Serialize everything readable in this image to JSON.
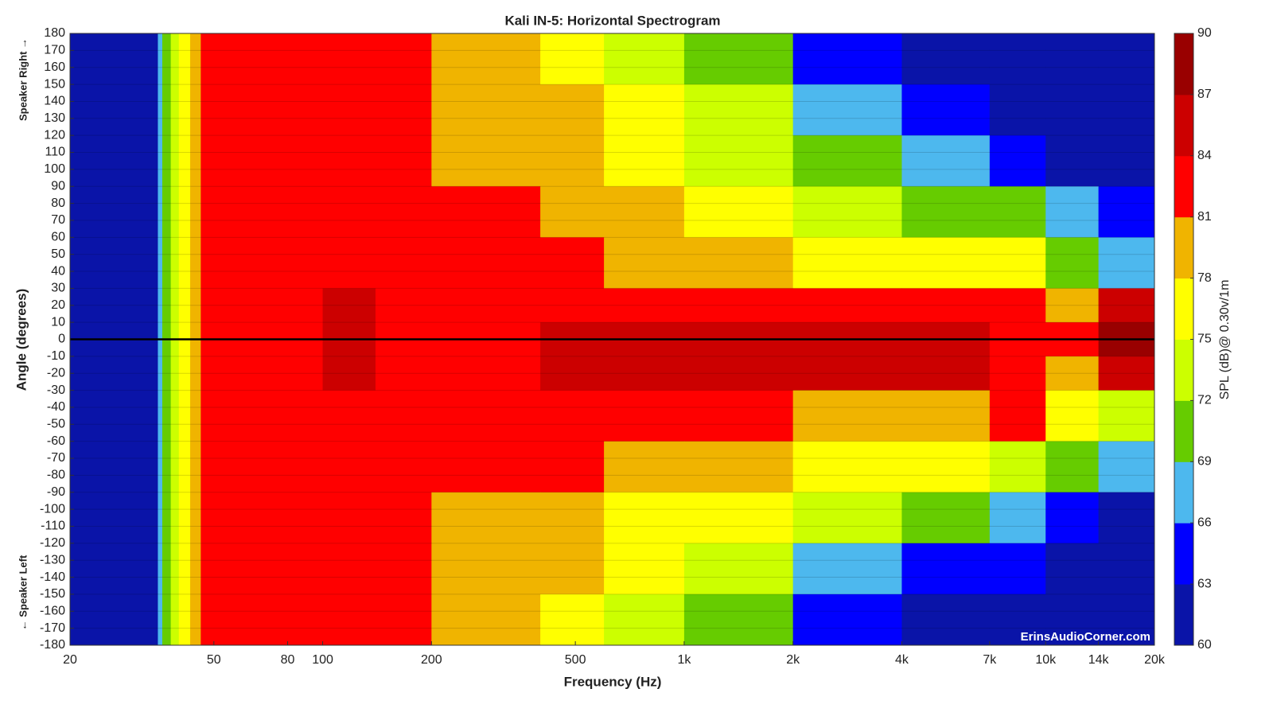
{
  "chart_data": {
    "type": "contour",
    "title": "Kali IN-5: Horizontal Spectrogram",
    "xlabel": "Frequency (Hz)",
    "ylabel": "Angle (degrees)",
    "colorbar_label": "SPL (dB)@ 0.30v/1m",
    "side_label_top": "Speaker Right →",
    "side_label_bottom": "← Speaker Left",
    "watermark": "ErinsAudioCorner.com",
    "xscale": "log",
    "grid": true,
    "zero_line": true,
    "xlim": [
      20,
      20000
    ],
    "xticks": [
      20,
      50,
      80,
      100,
      200,
      500,
      {
        "value": 1000,
        "label": "1k"
      },
      {
        "value": 2000,
        "label": "2k"
      },
      {
        "value": 4000,
        "label": "4k"
      },
      {
        "value": 7000,
        "label": "7k"
      },
      {
        "value": 10000,
        "label": "10k"
      },
      {
        "value": 14000,
        "label": "14k"
      },
      {
        "value": 20000,
        "label": "20k"
      }
    ],
    "ylim": [
      -180,
      180
    ],
    "yticks": [
      180,
      170,
      160,
      150,
      140,
      130,
      120,
      110,
      100,
      90,
      80,
      70,
      60,
      50,
      40,
      30,
      20,
      10,
      0,
      -10,
      -20,
      -30,
      -40,
      -50,
      -60,
      -70,
      -80,
      -90,
      -100,
      -110,
      -120,
      -130,
      -140,
      -150,
      -160,
      -170,
      -180
    ],
    "x_bins": [
      20,
      35,
      36,
      38,
      40,
      43,
      46,
      100,
      140,
      200,
      400,
      600,
      1000,
      2000,
      4000,
      7000,
      10000,
      14000,
      20000
    ],
    "y_bins": [
      180,
      150,
      120,
      90,
      60,
      30,
      10,
      -10,
      -30,
      -60,
      -90,
      -120,
      -150,
      -180
    ],
    "z": [
      [
        61,
        67,
        71,
        74,
        76,
        80,
        83,
        83,
        83,
        80,
        77,
        74,
        71,
        64,
        62,
        62,
        61,
        61
      ],
      [
        61,
        67,
        71,
        74,
        76,
        80,
        83,
        83,
        83,
        80,
        79,
        76,
        73,
        67,
        63,
        62,
        61,
        61
      ],
      [
        61,
        67,
        71,
        74,
        76,
        80,
        83,
        83,
        83,
        80,
        80,
        77,
        74,
        70,
        67,
        65,
        62,
        61
      ],
      [
        61,
        67,
        71,
        74,
        76,
        80,
        83,
        83,
        83,
        82,
        80,
        79,
        76,
        73,
        71,
        70,
        66,
        63
      ],
      [
        61,
        67,
        71,
        74,
        76,
        80,
        83,
        83,
        83,
        83,
        83,
        80,
        79,
        77,
        76,
        75,
        71,
        68
      ],
      [
        61,
        67,
        71,
        74,
        76,
        80,
        83,
        85,
        83,
        83,
        83,
        83,
        83,
        82,
        82,
        82,
        79,
        84
      ],
      [
        61,
        67,
        71,
        74,
        76,
        80,
        83,
        85,
        83,
        83,
        85,
        85,
        85,
        84,
        84,
        83,
        82,
        88
      ],
      [
        61,
        67,
        71,
        74,
        76,
        80,
        83,
        85,
        83,
        83,
        85,
        84,
        84,
        84,
        84,
        83,
        80,
        85
      ],
      [
        61,
        67,
        71,
        74,
        76,
        80,
        83,
        83,
        83,
        83,
        83,
        82,
        81,
        80,
        80,
        81,
        77,
        72
      ],
      [
        61,
        67,
        71,
        74,
        76,
        80,
        83,
        83,
        83,
        82,
        82,
        80,
        78,
        76,
        75,
        74,
        70,
        66
      ],
      [
        61,
        67,
        71,
        74,
        76,
        80,
        83,
        83,
        83,
        80,
        80,
        77,
        75,
        72,
        70,
        68,
        64,
        62
      ],
      [
        61,
        67,
        71,
        74,
        76,
        80,
        83,
        83,
        83,
        80,
        79,
        76,
        73,
        68,
        64,
        63,
        62,
        61
      ],
      [
        61,
        67,
        71,
        74,
        76,
        80,
        83,
        83,
        83,
        80,
        77,
        74,
        70,
        65,
        62,
        61,
        61,
        61
      ]
    ],
    "levels": [
      60,
      63,
      66,
      69,
      72,
      75,
      78,
      81,
      84,
      87,
      90
    ],
    "colors": [
      "#0a14a8",
      "#0000ff",
      "#4db8ee",
      "#66cc00",
      "#ccff00",
      "#ffff00",
      "#f0b400",
      "#ff0000",
      "#cc0000",
      "#990000"
    ]
  }
}
